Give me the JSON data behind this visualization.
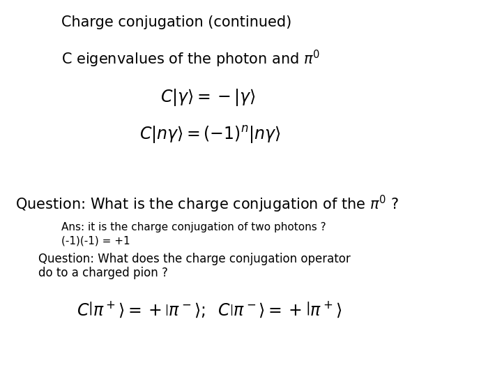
{
  "background_color": "#ffffff",
  "title": "Charge conjugation (continued)",
  "subtitle": "C eigenvalues of the photon and $\\pi^0$",
  "eq1": "$C|\\gamma\\rangle=-|\\gamma\\rangle$",
  "eq2": "$C|n\\gamma\\rangle=(-1)^n|n\\gamma\\rangle$",
  "question1": "Question: What is the charge conjugation of the $\\pi^0$ ?",
  "ans_line1": "Ans: it is the charge conjugation of two photons ?",
  "ans_line2": "(-1)(-1) = +1",
  "question2_line1": "Question: What does the charge conjugation operator",
  "question2_line2": "do to a charged pion ?",
  "eq3": "$C\\left|\\pi^+\\right\\rangle=+\\left|\\pi^-\\right\\rangle;\\;\\; C\\left|\\pi^-\\right\\rangle=+\\left|\\pi^+\\right\\rangle$",
  "title_fontsize": 15,
  "subtitle_fontsize": 15,
  "eq_fontsize": 17,
  "q1_fontsize": 15,
  "ans_fontsize": 11,
  "q2_fontsize": 12,
  "eq3_fontsize": 17
}
